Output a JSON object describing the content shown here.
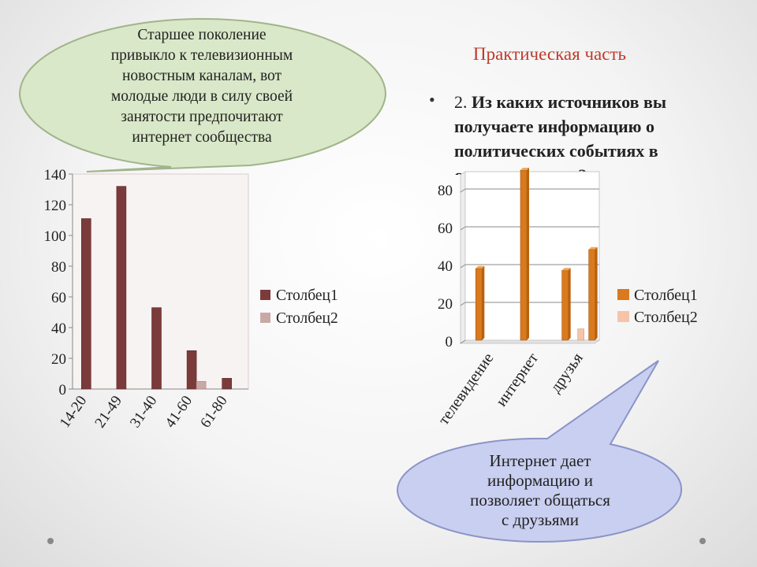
{
  "slide": {
    "title": "Практическая часть",
    "bullet": "•",
    "question_number": "2.",
    "question_lines": [
      "Из каких источников вы",
      "получаете информацию о",
      "политических событиях в",
      "стране и в мире?"
    ]
  },
  "callouts": {
    "top_left": {
      "lines": [
        "Старшее поколение",
        "привыкло к телевизионным",
        "новостным каналам, вот",
        "молодые люди в силу своей",
        "занятости предпочитают",
        "интернет сообщества"
      ],
      "fill": "#d9e8c8",
      "stroke": "#a0b48a"
    },
    "bottom_right": {
      "lines": [
        "Интернет дает",
        "информацию и",
        "позволяет общаться",
        "с друзьями"
      ],
      "fill": "#c9cff0",
      "stroke": "#8b94c8"
    }
  },
  "chart_data": [
    {
      "type": "bar",
      "categories": [
        "14-20",
        "21-49",
        "31-40",
        "41-60",
        "61-80"
      ],
      "series": [
        {
          "name": "Столбец1",
          "values": [
            111,
            132,
            53,
            25,
            7
          ],
          "color": "#7b3b3b"
        },
        {
          "name": "Столбец2",
          "values": [
            0,
            0,
            0,
            5,
            0
          ],
          "color": "#c9a9a6"
        }
      ],
      "ylim": [
        0,
        140
      ],
      "yticks": [
        "0",
        "20",
        "40",
        "60",
        "80",
        "100",
        "120",
        "140"
      ],
      "grid": false,
      "legend": "right"
    },
    {
      "type": "bar",
      "categories": [
        "телевидение",
        "интернет",
        "друзья"
      ],
      "series": [
        {
          "name": "Столбец1",
          "values": [
            [
              38
            ],
            [
              90
            ],
            [
              37,
              48
            ]
          ],
          "color": "#d97a1e"
        },
        {
          "name": "Столбец2",
          "values": [
            [
              0
            ],
            [
              0
            ],
            [
              6
            ]
          ],
          "color": "#f6c4a8"
        }
      ],
      "ylim": [
        0,
        80
      ],
      "yticks": [
        "0",
        "20",
        "40",
        "60",
        "80"
      ],
      "grid": true,
      "legend": "right"
    }
  ]
}
